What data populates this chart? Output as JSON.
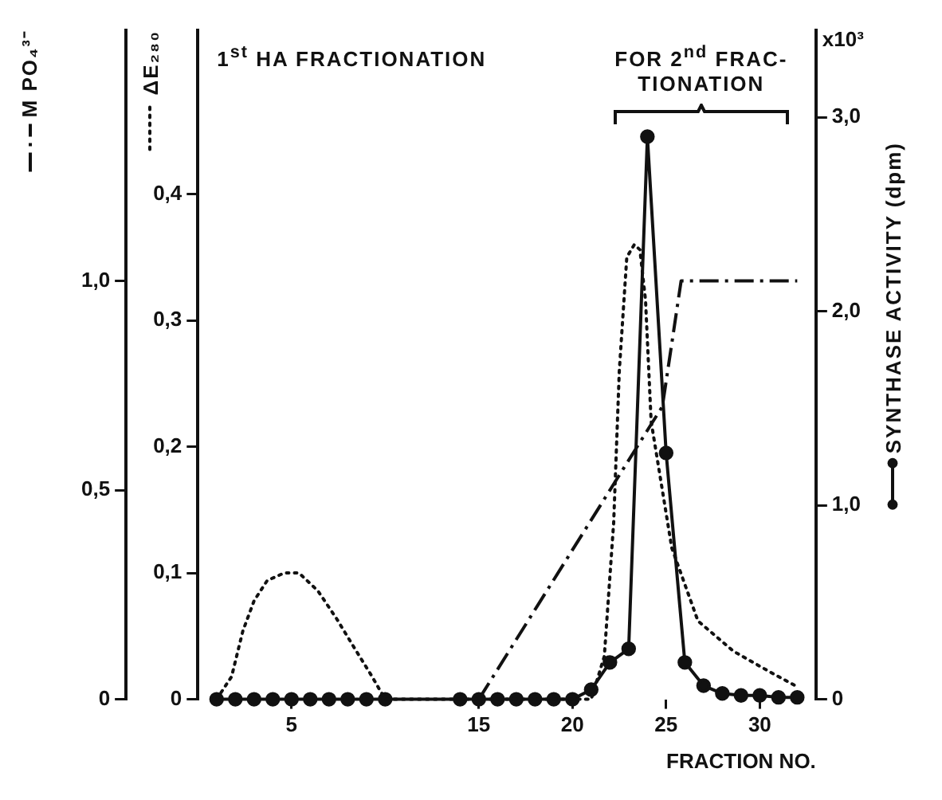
{
  "chart_data": {
    "type": "line",
    "title": "1$^{st}$ HA FRACTIONATION",
    "xlabel": "FRACTION NO.",
    "ylabel": "M PO₄³⁻",
    "y2label": "ΔE₂₈₀",
    "y3label": "SYNTHASE ACTIVITY (dpm)",
    "annotations": [
      "FOR 2$^{nd}$ FRAC- TIONATION",
      "x10³"
    ],
    "xlim": [
      0,
      33
    ],
    "xticks": [
      5,
      15,
      20,
      25,
      30
    ],
    "ylim": [
      0,
      1.6
    ],
    "yticks": [
      0,
      {
        "value": 0.5,
        "label": "0,5"
      },
      {
        "value": 1.0,
        "label": "1,0"
      }
    ],
    "y2lim": [
      0,
      0.53
    ],
    "y2ticks": [
      0,
      {
        "value": 0.1,
        "label": "0,1"
      },
      {
        "value": 0.2,
        "label": "0,2"
      },
      {
        "value": 0.3,
        "label": "0,3"
      },
      {
        "value": 0.4,
        "label": "0,4"
      }
    ],
    "y3lim": [
      0,
      3.45
    ],
    "y3ticks": [
      0,
      {
        "value": 1.0,
        "label": "1,0"
      },
      {
        "value": 2.0,
        "label": "2,0"
      },
      {
        "value": 3.0,
        "label": "3,0"
      }
    ],
    "grid": false,
    "legend": false,
    "series": [
      {
        "color": "#111111",
        "axis": "y",
        "line_style": "dashed",
        "marker": "none",
        "x": [
          15,
          24.8,
          25.8,
          32
        ],
        "values": [
          0,
          0.7,
          1.0,
          1.0
        ]
      },
      {
        "color": "#111111",
        "axis": "y2",
        "line_style": "dotted",
        "marker": "none",
        "x": [
          1,
          1.8,
          2.4,
          3.0,
          3.7,
          4.6,
          5.4,
          6.4,
          7.4,
          8.3,
          9.3,
          10,
          21,
          21.7,
          22.2,
          22.5,
          22.9,
          23.3,
          23.6,
          23.9,
          24.2,
          25.3,
          26.7,
          28.6,
          30.5,
          32
        ],
        "values": [
          0,
          0.018,
          0.054,
          0.078,
          0.094,
          0.1,
          0.1,
          0.086,
          0.064,
          0.042,
          0.018,
          0,
          0,
          0.034,
          0.14,
          0.26,
          0.35,
          0.36,
          0.356,
          0.316,
          0.22,
          0.12,
          0.062,
          0.038,
          0.022,
          0.01
        ]
      },
      {
        "color": "#111111",
        "axis": "y3",
        "line_style": "solid",
        "marker": "circle",
        "x": [
          1,
          2,
          3,
          4,
          5,
          6,
          7,
          8,
          9,
          10,
          14,
          15,
          16,
          17,
          18,
          19,
          20,
          21,
          22,
          23,
          24,
          25,
          26,
          27,
          28,
          29,
          30,
          31,
          32
        ],
        "values": [
          0,
          0,
          0,
          0,
          0,
          0,
          0,
          0,
          0,
          0,
          0,
          0,
          0,
          0,
          0,
          0,
          0,
          0.05,
          0.19,
          0.26,
          2.9,
          1.27,
          0.19,
          0.07,
          0.03,
          0.02,
          0.02,
          0.01,
          0.01
        ]
      }
    ]
  }
}
